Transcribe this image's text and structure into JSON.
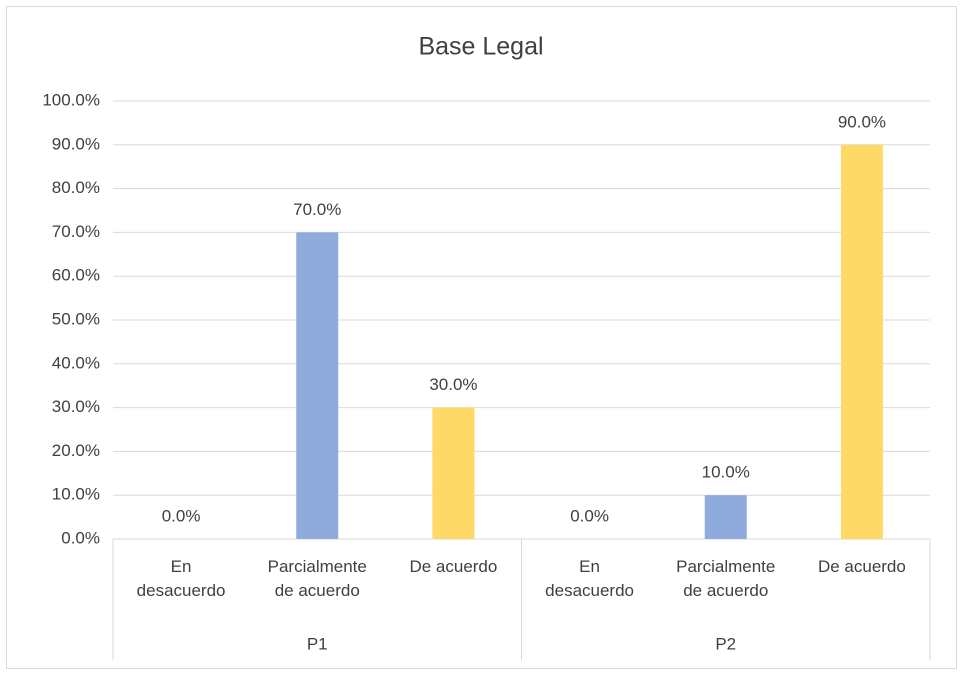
{
  "chart_data": {
    "type": "bar",
    "title": "Base Legal",
    "categories": [
      "En desacuerdo",
      "Parcialmente de acuerdo",
      "De acuerdo",
      "En desacuerdo",
      "Parcialmente de acuerdo",
      "De acuerdo"
    ],
    "groups": [
      {
        "name": "P1",
        "size": 3
      },
      {
        "name": "P2",
        "size": 3
      }
    ],
    "values": [
      0,
      70,
      30,
      0,
      10,
      90
    ],
    "value_labels": [
      "0.0%",
      "70.0%",
      "30.0%",
      "0.0%",
      "10.0%",
      "90.0%"
    ],
    "colors": [
      "#f4b183",
      "#8faadc",
      "#ffd966",
      "#f4b183",
      "#8faadc",
      "#ffd966"
    ],
    "ylim": [
      0,
      100
    ],
    "yticks": [
      {
        "value": 0,
        "label": "0.0%"
      },
      {
        "value": 10,
        "label": "10.0%"
      },
      {
        "value": 20,
        "label": "20.0%"
      },
      {
        "value": 30,
        "label": "30.0%"
      },
      {
        "value": 40,
        "label": "40.0%"
      },
      {
        "value": 50,
        "label": "50.0%"
      },
      {
        "value": 60,
        "label": "60.0%"
      },
      {
        "value": 70,
        "label": "70.0%"
      },
      {
        "value": 80,
        "label": "80.0%"
      },
      {
        "value": 90,
        "label": "90.0%"
      },
      {
        "value": 100,
        "label": "100.0%"
      }
    ],
    "grid": true
  }
}
